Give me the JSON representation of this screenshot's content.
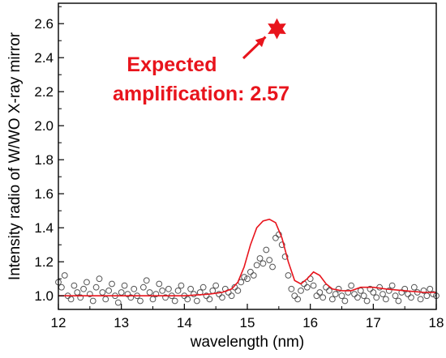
{
  "chart_data": {
    "type": "line",
    "title": "",
    "xlabel": "wavelength (nm)",
    "ylabel": "Intensity radio of W/WO X-ray mirror",
    "xlim": [
      12,
      18
    ],
    "ylim": [
      0.92,
      2.72
    ],
    "xticks": [
      "12",
      "13",
      "14",
      "15",
      "16",
      "17",
      "18"
    ],
    "yticks": [
      "1.0",
      "1.2",
      "1.4",
      "1.6",
      "1.8",
      "2.0",
      "2.2",
      "2.4",
      "2.6"
    ],
    "grid": false,
    "legend": "none",
    "annotation": {
      "line1": "Expected",
      "line2": "amplification: 2.57",
      "marker_x": 15.47,
      "marker_y": 2.57,
      "color": "#e8141c"
    },
    "series": [
      {
        "style": "open-circles",
        "color": "#555555",
        "x": [
          12.0,
          12.05,
          12.1,
          12.15,
          12.2,
          12.25,
          12.3,
          12.35,
          12.4,
          12.45,
          12.5,
          12.55,
          12.6,
          12.65,
          12.7,
          12.75,
          12.8,
          12.85,
          12.9,
          12.95,
          13.0,
          13.05,
          13.1,
          13.15,
          13.2,
          13.25,
          13.3,
          13.35,
          13.4,
          13.45,
          13.5,
          13.55,
          13.6,
          13.65,
          13.7,
          13.75,
          13.8,
          13.85,
          13.9,
          13.95,
          14.0,
          14.05,
          14.1,
          14.15,
          14.2,
          14.25,
          14.3,
          14.35,
          14.4,
          14.45,
          14.5,
          14.55,
          14.6,
          14.65,
          14.7,
          14.75,
          14.8,
          14.85,
          14.9,
          14.95,
          15.0,
          15.05,
          15.1,
          15.15,
          15.2,
          15.25,
          15.3,
          15.35,
          15.4,
          15.45,
          15.5,
          15.55,
          15.6,
          15.65,
          15.7,
          15.75,
          15.8,
          15.85,
          15.9,
          15.95,
          16.0,
          16.05,
          16.1,
          16.15,
          16.2,
          16.25,
          16.3,
          16.35,
          16.4,
          16.45,
          16.5,
          16.55,
          16.6,
          16.65,
          16.7,
          16.75,
          16.8,
          16.85,
          16.9,
          16.95,
          17.0,
          17.05,
          17.1,
          17.15,
          17.2,
          17.25,
          17.3,
          17.35,
          17.4,
          17.45,
          17.5,
          17.55,
          17.6,
          17.65,
          17.7,
          17.75,
          17.8,
          17.85,
          17.9,
          17.95,
          18.0
        ],
        "y": [
          1.08,
          1.05,
          1.12,
          1.0,
          0.98,
          1.06,
          1.02,
          0.99,
          1.04,
          1.08,
          1.01,
          0.97,
          1.05,
          1.1,
          1.02,
          0.98,
          1.03,
          1.07,
          1.0,
          0.96,
          1.02,
          1.06,
          1.01,
          0.99,
          1.04,
          1.0,
          0.97,
          1.05,
          1.09,
          1.02,
          0.98,
          1.01,
          1.07,
          1.03,
          0.99,
          1.04,
          1.0,
          0.97,
          1.03,
          1.06,
          1.0,
          0.98,
          1.04,
          1.01,
          0.97,
          1.02,
          1.05,
          1.0,
          0.98,
          1.03,
          1.06,
          1.01,
          0.99,
          1.04,
          1.02,
          1.0,
          1.05,
          1.03,
          1.08,
          1.11,
          1.1,
          1.14,
          1.12,
          1.18,
          1.22,
          1.19,
          1.27,
          1.21,
          1.17,
          1.34,
          1.36,
          1.3,
          1.23,
          1.12,
          1.04,
          1.0,
          0.98,
          1.03,
          1.07,
          1.05,
          1.1,
          1.06,
          1.0,
          1.02,
          0.99,
          1.05,
          1.03,
          0.98,
          1.01,
          1.04,
          1.0,
          0.97,
          1.02,
          1.06,
          1.01,
          0.99,
          1.03,
          1.0,
          0.97,
          1.04,
          1.02,
          0.99,
          1.05,
          1.01,
          0.98,
          1.03,
          1.06,
          1.0,
          0.97,
          1.02,
          1.04,
          1.01,
          0.99,
          1.05,
          1.02,
          0.98,
          1.03,
          1.0,
          1.04,
          1.01,
          1.0
        ]
      },
      {
        "style": "line",
        "color": "#e8141c",
        "x": [
          12.0,
          12.5,
          13.0,
          13.5,
          14.0,
          14.4,
          14.6,
          14.75,
          14.85,
          14.95,
          15.05,
          15.15,
          15.25,
          15.35,
          15.45,
          15.55,
          15.65,
          15.75,
          15.85,
          15.95,
          16.05,
          16.15,
          16.25,
          16.35,
          16.5,
          16.65,
          16.8,
          17.0,
          17.2,
          17.5,
          17.8,
          18.0
        ],
        "y": [
          1.0,
          1.0,
          1.0,
          1.0,
          1.0,
          1.01,
          1.02,
          1.04,
          1.08,
          1.17,
          1.3,
          1.4,
          1.44,
          1.45,
          1.43,
          1.34,
          1.2,
          1.09,
          1.07,
          1.1,
          1.14,
          1.12,
          1.07,
          1.04,
          1.03,
          1.03,
          1.05,
          1.05,
          1.04,
          1.03,
          1.02,
          1.02
        ]
      }
    ]
  }
}
